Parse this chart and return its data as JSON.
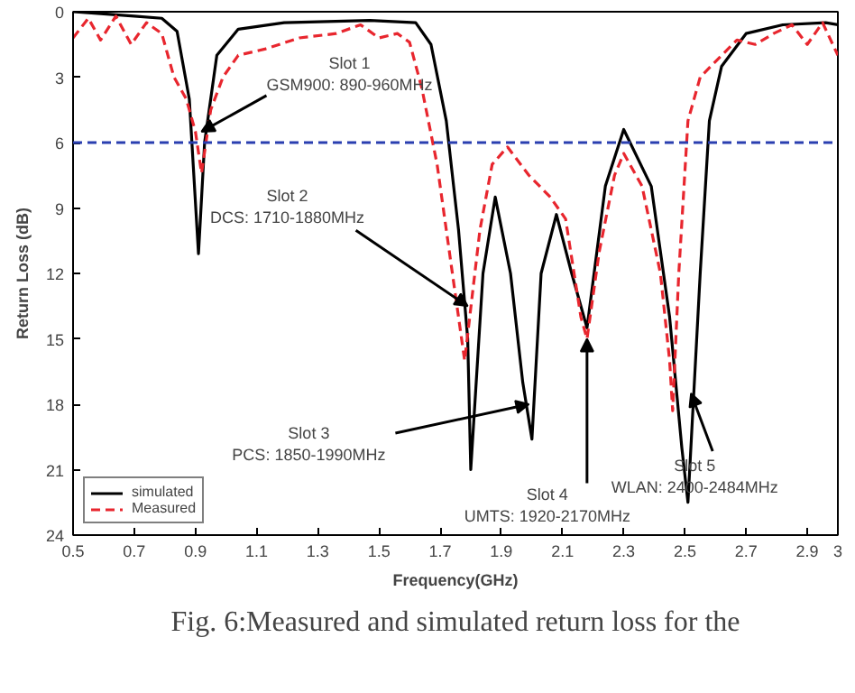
{
  "chart_data": {
    "type": "line",
    "xlabel": "Frequency(GHz)",
    "ylabel": "Return Loss (dB)",
    "xlim": [
      0.5,
      3
    ],
    "ylim": [
      24,
      0
    ],
    "xticks": [
      0.5,
      0.7,
      0.9,
      1.1,
      1.3,
      1.5,
      1.7,
      1.9,
      2.1,
      2.3,
      2.5,
      2.7,
      2.9,
      3
    ],
    "yticks": [
      0,
      3,
      6,
      9,
      12,
      15,
      18,
      21,
      24
    ],
    "legend": "bottom left",
    "series": [
      {
        "name": "simulated",
        "color": "#000000",
        "line_style": "solid",
        "x": [
          0.5,
          0.6,
          0.7,
          0.79,
          0.84,
          0.88,
          0.91,
          0.93,
          0.97,
          1.04,
          1.19,
          1.47,
          1.62,
          1.67,
          1.72,
          1.76,
          1.79,
          1.8,
          1.84,
          1.88,
          1.93,
          1.97,
          2.0,
          2.03,
          2.08,
          2.13,
          2.18,
          2.24,
          2.3,
          2.39,
          2.45,
          2.49,
          2.51,
          2.55,
          2.58,
          2.62,
          2.7,
          2.82,
          2.96,
          3.0
        ],
        "values": [
          0,
          0.1,
          0.2,
          0.3,
          0.9,
          4,
          11.1,
          6,
          2,
          0.8,
          0.5,
          0.4,
          0.5,
          1.5,
          5,
          10,
          15,
          21,
          12,
          8.5,
          12,
          17,
          19.6,
          12,
          9.3,
          12,
          14.5,
          8,
          5.4,
          8,
          14,
          20,
          22.5,
          12,
          5,
          2.5,
          1.0,
          0.6,
          0.5,
          0.6
        ]
      },
      {
        "name": "Measured",
        "color": "#e8262e",
        "line_style": "dashed",
        "x": [
          0.5,
          0.55,
          0.59,
          0.64,
          0.69,
          0.74,
          0.79,
          0.83,
          0.87,
          0.9,
          0.92,
          0.95,
          0.99,
          1.04,
          1.13,
          1.24,
          1.36,
          1.44,
          1.5,
          1.56,
          1.6,
          1.64,
          1.69,
          1.73,
          1.76,
          1.78,
          1.83,
          1.87,
          1.92,
          1.99,
          2.06,
          2.11,
          2.16,
          2.18,
          2.22,
          2.27,
          2.3,
          2.36,
          2.42,
          2.45,
          2.46,
          2.48,
          2.51,
          2.55,
          2.62,
          2.67,
          2.73,
          2.79,
          2.85,
          2.9,
          2.95,
          3.0
        ],
        "values": [
          1.2,
          0.3,
          1.3,
          0.2,
          1.5,
          0.5,
          1.0,
          3.0,
          4.0,
          5.5,
          7.4,
          4.5,
          3,
          2,
          1.7,
          1.2,
          1.0,
          0.6,
          1.2,
          1.0,
          1.4,
          3.5,
          7,
          11,
          14,
          16,
          10,
          7,
          6.2,
          7.5,
          8.5,
          9.5,
          14,
          15,
          11,
          7.5,
          6.5,
          8,
          12,
          16,
          18.3,
          12,
          5,
          3,
          2,
          1.3,
          1.5,
          1.0,
          0.6,
          1.5,
          0.5,
          2.0
        ]
      }
    ],
    "ref_lines": [
      {
        "axis": "y",
        "value": 6,
        "color": "#2a3fb0",
        "line_style": "dashed"
      }
    ],
    "annotations": [
      "Fig. 6:Measured and simulated return loss for the",
      {
        "text": "Slot 1\nGSM900: 890-960MHz",
        "x": 0.92,
        "y": 5.5
      },
      {
        "text": "Slot 2\nDCS: 1710-1880MHz",
        "x": 1.79,
        "y": 13.5
      },
      {
        "text": "Slot 3\nPCS: 1850-1990MHz",
        "x": 1.99,
        "y": 18
      },
      {
        "text": "Slot 4\nUMTS: 1920-2170MHz",
        "x": 2.18,
        "y": 15
      },
      {
        "text": "Slot 5\nWLAN: 2400-2484MHz",
        "x": 2.52,
        "y": 17.5
      }
    ]
  }
}
